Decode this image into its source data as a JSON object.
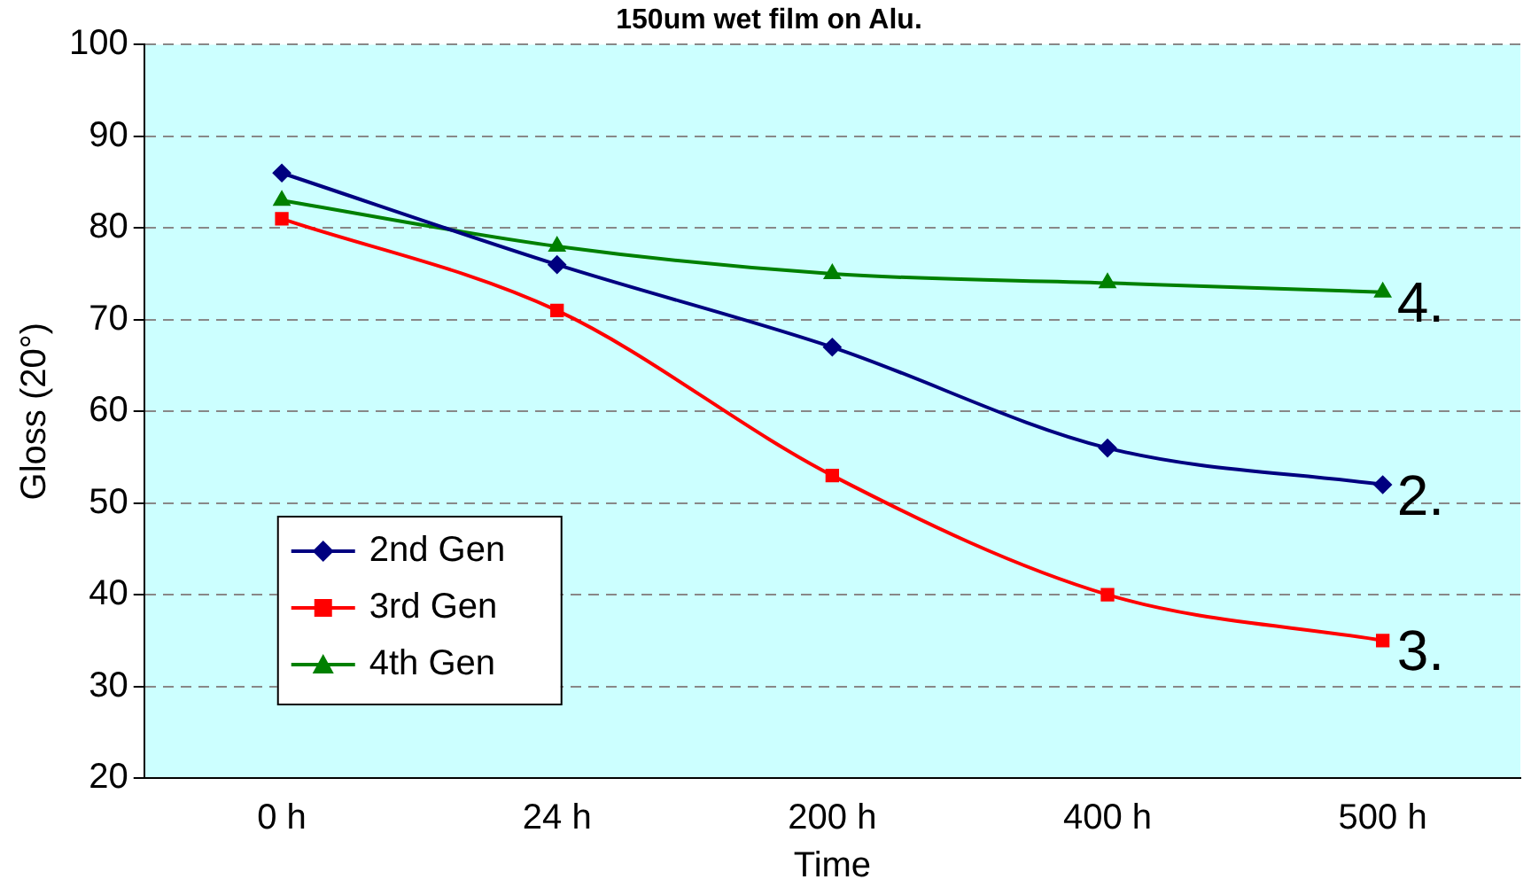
{
  "chart_data": {
    "type": "line",
    "title": "150um wet film on Alu.",
    "xlabel": "Time",
    "ylabel": "Gloss (20°)",
    "categories": [
      "0 h",
      "24 h",
      "200 h",
      "400 h",
      "500 h"
    ],
    "series": [
      {
        "name": "2nd Gen",
        "color": "#000080",
        "marker": "diamond",
        "values": [
          86,
          76,
          67,
          56,
          52
        ]
      },
      {
        "name": "3rd Gen",
        "color": "#ff0000",
        "marker": "square",
        "values": [
          81,
          71,
          53,
          40,
          35
        ]
      },
      {
        "name": "4th Gen",
        "color": "#008000",
        "marker": "triangle",
        "values": [
          83,
          78,
          75,
          74,
          73
        ]
      }
    ],
    "ylim": [
      20,
      100
    ],
    "yticks": [
      20,
      30,
      40,
      50,
      60,
      70,
      80,
      90,
      100
    ],
    "grid": "y",
    "legend": "bottom left",
    "annotations": [
      {
        "text": "4.",
        "x": "500 h",
        "y": 73
      },
      {
        "text": "2.",
        "x": "500 h",
        "y": 52
      },
      {
        "text": "3.",
        "x": "500 h",
        "y": 35
      }
    ]
  }
}
